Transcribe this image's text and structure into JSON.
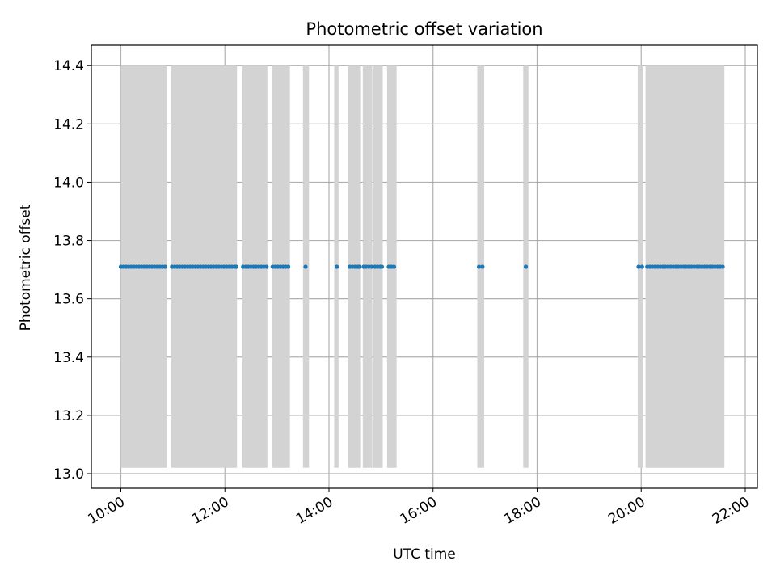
{
  "chart_data": {
    "type": "scatter",
    "title": "Photometric offset variation",
    "xlabel": "UTC time",
    "ylabel": "Photometric offset",
    "x_ticks": [
      "10:00",
      "12:00",
      "14:00",
      "16:00",
      "18:00",
      "20:00",
      "22:00"
    ],
    "xlim": [
      "09:26",
      "22:14"
    ],
    "y_ticks": [
      "13.0",
      "13.2",
      "13.4",
      "13.6",
      "13.8",
      "14.0",
      "14.2",
      "14.4"
    ],
    "ylim": [
      12.95,
      14.47
    ],
    "grid": true,
    "colors": {
      "points": "#1f77b4",
      "bands": "#d3d3d3",
      "grid": "#b0b0b0"
    },
    "shaded_intervals": {
      "y_range": [
        13.02,
        14.4
      ],
      "intervals": [
        [
          "10:00",
          "10:53"
        ],
        [
          "10:58",
          "12:14"
        ],
        [
          "12:20",
          "12:49"
        ],
        [
          "12:54",
          "13:15"
        ],
        [
          "13:30",
          "13:37"
        ],
        [
          "14:06",
          "14:11"
        ],
        [
          "14:22",
          "14:36"
        ],
        [
          "14:39",
          "14:50"
        ],
        [
          "14:51",
          "15:02"
        ],
        [
          "15:07",
          "15:18"
        ],
        [
          "16:51",
          "16:59"
        ],
        [
          "17:44",
          "17:50"
        ],
        [
          "19:56",
          "20:02"
        ],
        [
          "20:05",
          "21:36"
        ]
      ]
    },
    "series": [
      {
        "y_value": 13.71,
        "x": [
          "10:00",
          "10:03",
          "10:06",
          "10:09",
          "10:12",
          "10:15",
          "10:18",
          "10:21",
          "10:24",
          "10:27",
          "10:30",
          "10:33",
          "10:36",
          "10:39",
          "10:42",
          "10:45",
          "10:48",
          "10:51",
          "10:59",
          "11:02",
          "11:05",
          "11:08",
          "11:11",
          "11:14",
          "11:17",
          "11:20",
          "11:23",
          "11:26",
          "11:29",
          "11:32",
          "11:35",
          "11:38",
          "11:41",
          "11:44",
          "11:47",
          "11:50",
          "11:53",
          "11:56",
          "11:59",
          "12:02",
          "12:05",
          "12:08",
          "12:11",
          "12:13",
          "12:21",
          "12:24",
          "12:27",
          "12:30",
          "12:33",
          "12:36",
          "12:39",
          "12:42",
          "12:45",
          "12:48",
          "12:55",
          "12:58",
          "13:01",
          "13:04",
          "13:07",
          "13:10",
          "13:13",
          "13:33",
          "14:09",
          "14:24",
          "14:27",
          "14:30",
          "14:33",
          "14:35",
          "14:40",
          "14:43",
          "14:46",
          "14:49",
          "14:53",
          "14:56",
          "14:59",
          "15:01",
          "15:09",
          "15:12",
          "15:15",
          "16:53",
          "16:57",
          "17:47",
          "19:57",
          "20:01",
          "20:07",
          "20:10",
          "20:13",
          "20:16",
          "20:19",
          "20:22",
          "20:25",
          "20:28",
          "20:31",
          "20:34",
          "20:37",
          "20:40",
          "20:43",
          "20:46",
          "20:49",
          "20:52",
          "20:55",
          "20:58",
          "21:01",
          "21:04",
          "21:07",
          "21:10",
          "21:13",
          "21:16",
          "21:19",
          "21:22",
          "21:25",
          "21:28",
          "21:31",
          "21:34"
        ]
      }
    ]
  }
}
